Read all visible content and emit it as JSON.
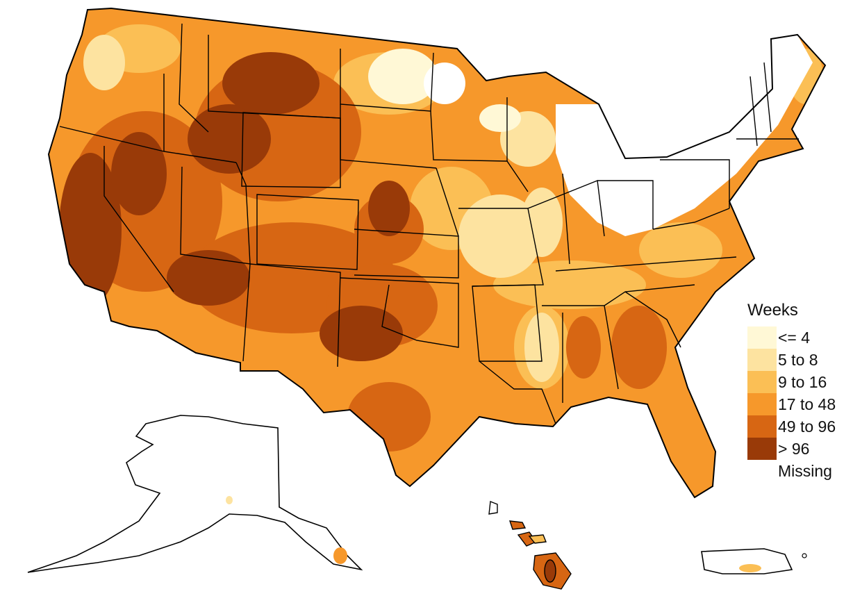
{
  "legend": {
    "title": "Weeks",
    "items": [
      {
        "label": "<= 4",
        "color": "#fff8d6"
      },
      {
        "label": "5 to 8",
        "color": "#fde3a0"
      },
      {
        "label": "9 to 16",
        "color": "#fbbf55"
      },
      {
        "label": "17 to 48",
        "color": "#f6982b"
      },
      {
        "label": "49 to 96",
        "color": "#d76613"
      },
      {
        "label": "> 96",
        "color": "#993a08"
      },
      {
        "label": "Missing",
        "color": "#ffffff"
      }
    ]
  }
}
